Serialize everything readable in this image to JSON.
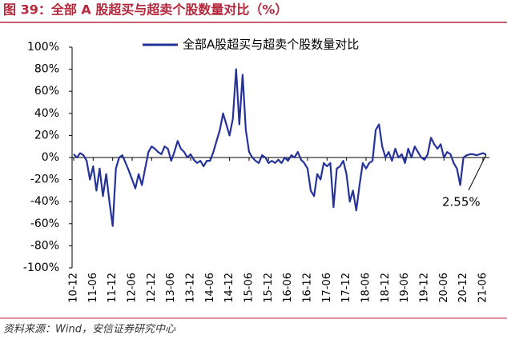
{
  "chart_data": {
    "type": "line",
    "title": "图 39：全部 A 股超买与超卖个股数量对比（%）",
    "source": "资料来源：Wind，安信证券研究中心",
    "categories": [
      "10-12",
      null,
      null,
      null,
      null,
      null,
      "11-06",
      null,
      null,
      null,
      null,
      null,
      "11-12",
      null,
      null,
      null,
      null,
      null,
      "12-06",
      null,
      null,
      null,
      null,
      null,
      "12-12",
      null,
      null,
      null,
      null,
      null,
      "13-06",
      null,
      null,
      null,
      null,
      null,
      "13-12",
      null,
      null,
      null,
      null,
      null,
      "14-06",
      null,
      null,
      null,
      null,
      null,
      "14-12",
      null,
      null,
      null,
      null,
      null,
      "15-06",
      null,
      null,
      null,
      null,
      null,
      "15-12",
      null,
      null,
      null,
      null,
      null,
      "16-06",
      null,
      null,
      null,
      null,
      null,
      "16-12",
      null,
      null,
      null,
      null,
      null,
      "17-06",
      null,
      null,
      null,
      null,
      null,
      "17-12",
      null,
      null,
      null,
      null,
      null,
      "18-06",
      null,
      null,
      null,
      null,
      null,
      "18-12",
      null,
      null,
      null,
      null,
      null,
      "19-06",
      null,
      null,
      null,
      null,
      null,
      "19-12",
      null,
      null,
      null,
      null,
      null,
      "20-06",
      null,
      null,
      null,
      null,
      null,
      "20-12",
      null,
      null,
      null,
      null,
      null,
      "21-06",
      null
    ],
    "series": [
      {
        "name": "全部A股超买与超卖个股数量对比",
        "color": "#24329a",
        "values": [
          3,
          0,
          4,
          2,
          -3,
          -20,
          -8,
          -30,
          -10,
          -35,
          -15,
          -40,
          -62,
          -10,
          0,
          2,
          -5,
          -12,
          -20,
          -28,
          -15,
          -25,
          -10,
          5,
          10,
          8,
          5,
          3,
          10,
          8,
          -3,
          5,
          15,
          8,
          5,
          0,
          3,
          -2,
          -5,
          -3,
          -8,
          -3,
          -3,
          5,
          15,
          25,
          40,
          30,
          20,
          35,
          80,
          30,
          75,
          25,
          5,
          0,
          -3,
          -5,
          2,
          0,
          -5,
          -3,
          -5,
          -2,
          -5,
          0,
          -3,
          2,
          0,
          5,
          -2,
          -5,
          -10,
          -30,
          -35,
          -15,
          -20,
          -5,
          -8,
          -5,
          -45,
          -10,
          -8,
          -3,
          -15,
          -40,
          -30,
          -48,
          -25,
          -5,
          -10,
          -5,
          -3,
          25,
          30,
          10,
          0,
          5,
          -3,
          8,
          0,
          3,
          -5,
          8,
          0,
          10,
          5,
          0,
          -2,
          3,
          18,
          12,
          8,
          12,
          0,
          5,
          3,
          -5,
          -10,
          -25,
          0,
          2,
          3,
          3,
          2,
          3,
          4,
          2.55
        ]
      }
    ],
    "annotations": [
      {
        "text": "2.55%"
      }
    ],
    "ylim": [
      -100,
      100
    ],
    "yticks": [
      {
        "value": 100,
        "label": "100%"
      },
      {
        "value": 80,
        "label": "80%"
      },
      {
        "value": 60,
        "label": "60%"
      },
      {
        "value": 40,
        "label": "40%"
      },
      {
        "value": 20,
        "label": "20%"
      },
      {
        "value": 0,
        "label": "0%"
      },
      {
        "value": -20,
        "label": "-20%"
      },
      {
        "value": -40,
        "label": "-40%"
      },
      {
        "value": -60,
        "label": "-60%"
      },
      {
        "value": -80,
        "label": "-80%"
      },
      {
        "value": -100,
        "label": "-100%"
      }
    ]
  }
}
